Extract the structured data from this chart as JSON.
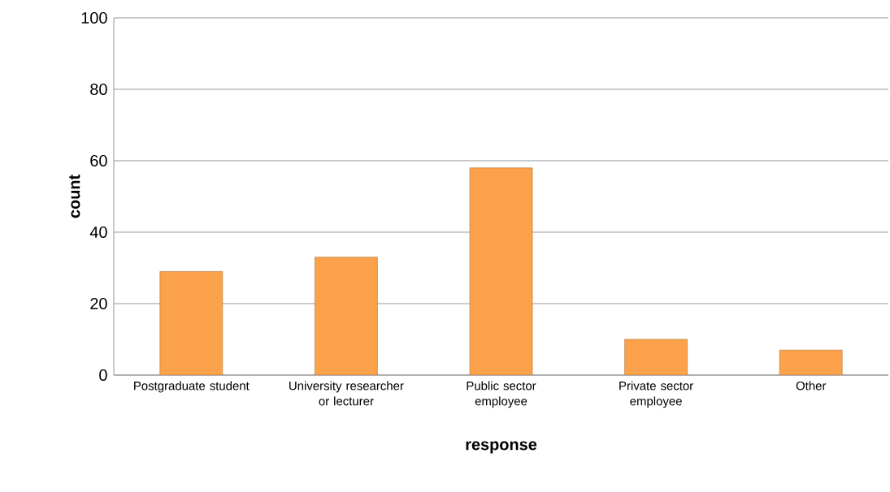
{
  "chart_data": {
    "type": "bar",
    "xlabel": "response",
    "ylabel": "count",
    "categories": [
      "Postgraduate student",
      "University researcher or lecturer",
      "Public sector employee",
      "Private sector employee",
      "Other"
    ],
    "values": [
      29,
      33,
      58,
      10,
      7
    ],
    "color": "#fba24a",
    "ylim": [
      0,
      100
    ],
    "yticks": [
      0,
      20,
      40,
      60,
      80,
      100
    ],
    "grid": "y"
  }
}
